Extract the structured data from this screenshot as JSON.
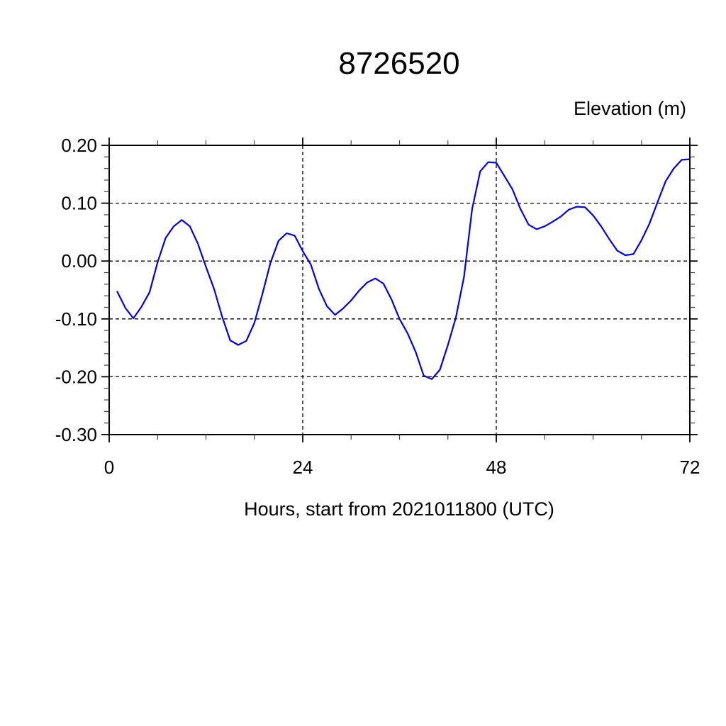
{
  "title": "8726520",
  "corner_label": "Elevation (m)",
  "x_axis_label": "Hours, start from 2021011800 (UTC)",
  "chart_data": {
    "type": "line",
    "title": "8726520",
    "xlabel": "Hours, start from 2021011800 (UTC)",
    "ylabel": "Elevation (m)",
    "legend": "none",
    "grid": "dashed black; horizontal lines at every 0.10 from -0.30 to 0.20; vertical lines at hours 24 and 48",
    "line_color": "#0000ee",
    "xlim": [
      0,
      72
    ],
    "ylim": [
      -0.3,
      0.2
    ],
    "x_major_ticks": [
      0,
      24,
      48,
      72
    ],
    "x_tick_labels": [
      "0",
      "24",
      "48",
      "72"
    ],
    "x_minor_tick_step": 6,
    "y_major_ticks": [
      0.2,
      0.1,
      0.0,
      -0.1,
      -0.2,
      -0.3
    ],
    "y_tick_labels": [
      "0.20",
      "0.10",
      "0.00",
      "-0.10",
      "-0.20",
      "-0.30"
    ],
    "y_minor_tick_step": 0.02,
    "x": [
      1,
      2,
      3,
      4,
      5,
      6,
      7,
      8,
      9,
      10,
      11,
      12,
      13,
      14,
      15,
      16,
      17,
      18,
      19,
      20,
      21,
      22,
      23,
      24,
      25,
      26,
      27,
      28,
      29,
      30,
      31,
      32,
      33,
      34,
      35,
      36,
      37,
      38,
      39,
      40,
      41,
      42,
      43,
      44,
      45,
      46,
      47,
      48,
      49,
      50,
      51,
      52,
      53,
      54,
      55,
      56,
      57,
      58,
      59,
      60,
      61,
      62,
      63,
      64,
      65,
      66,
      67,
      68,
      69,
      70,
      71,
      72
    ],
    "values": [
      -0.053,
      -0.081,
      -0.099,
      -0.079,
      -0.054,
      -0.002,
      0.04,
      0.06,
      0.071,
      0.06,
      0.03,
      -0.01,
      -0.048,
      -0.096,
      -0.137,
      -0.145,
      -0.138,
      -0.107,
      -0.057,
      -0.003,
      0.035,
      0.048,
      0.044,
      0.017,
      -0.006,
      -0.048,
      -0.078,
      -0.093,
      -0.082,
      -0.068,
      -0.051,
      -0.037,
      -0.03,
      -0.039,
      -0.066,
      -0.1,
      -0.125,
      -0.157,
      -0.198,
      -0.204,
      -0.188,
      -0.145,
      -0.097,
      -0.027,
      0.09,
      0.155,
      0.171,
      0.17,
      0.147,
      0.124,
      0.09,
      0.063,
      0.055,
      0.06,
      0.068,
      0.077,
      0.089,
      0.094,
      0.093,
      0.079,
      0.06,
      0.038,
      0.018,
      0.01,
      0.012,
      0.036,
      0.065,
      0.102,
      0.138,
      0.16,
      0.175,
      0.176
    ]
  }
}
